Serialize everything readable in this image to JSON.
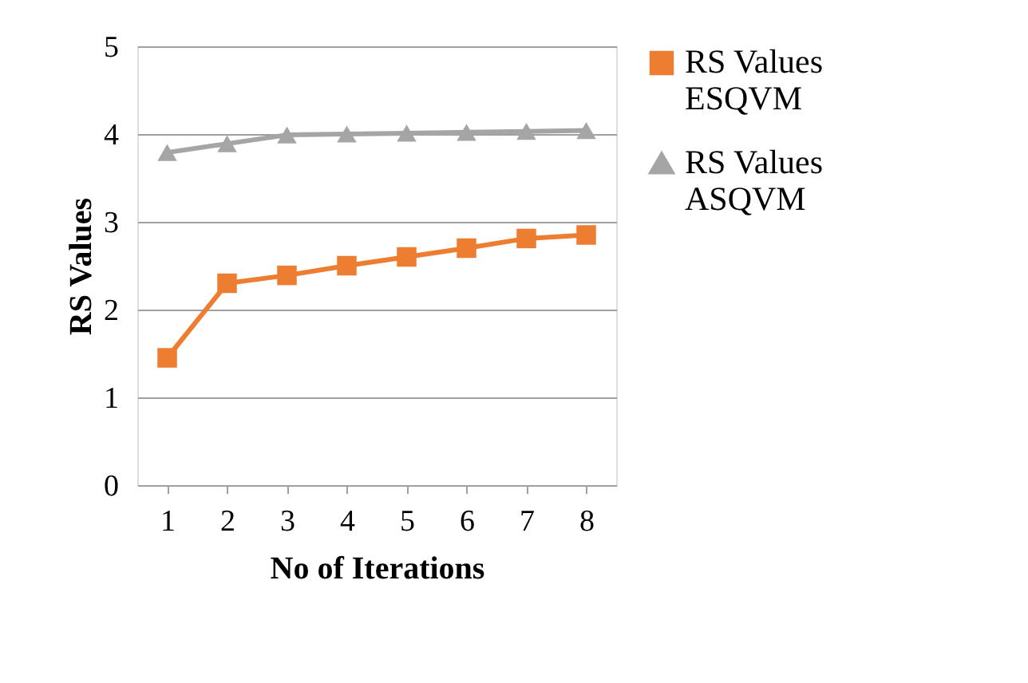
{
  "chart_data": {
    "type": "line",
    "xlabel": "No of Iterations",
    "ylabel": "RS Values",
    "categories": [
      "1",
      "2",
      "3",
      "4",
      "5",
      "6",
      "7",
      "8"
    ],
    "series": [
      {
        "name": "RS Values ESQVM",
        "color": "#ed7d31",
        "marker": "square",
        "values": [
          1.45,
          2.3,
          2.39,
          2.5,
          2.6,
          2.7,
          2.81,
          2.85
        ]
      },
      {
        "name": "RS Values ASQVM",
        "color": "#a5a5a5",
        "marker": "triangle",
        "values": [
          3.79,
          3.89,
          3.99,
          4.0,
          4.01,
          4.02,
          4.03,
          4.04
        ]
      }
    ],
    "ylim": [
      0,
      5
    ],
    "yticks": [
      0,
      1,
      2,
      3,
      4,
      5
    ],
    "grid": "y",
    "legend": "right",
    "line_style": "solid"
  }
}
